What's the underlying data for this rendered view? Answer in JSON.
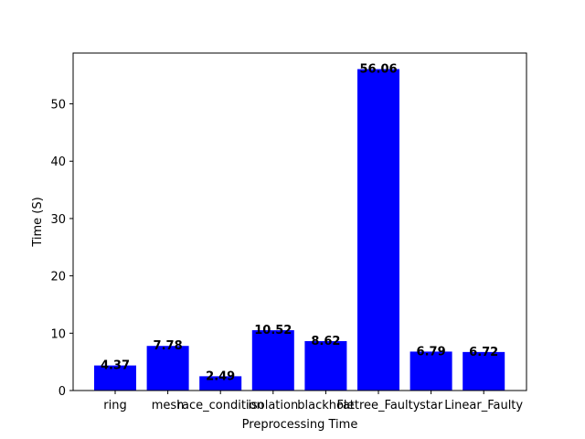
{
  "chart_data": {
    "type": "bar",
    "title": "",
    "xlabel": "Preprocessing Time",
    "ylabel": "Time (S)",
    "categories": [
      "ring",
      "mesh",
      "race_condition",
      "isolation",
      "blackhole",
      "Fattree_Faulty",
      "star",
      "Linear_Faulty"
    ],
    "values": [
      4.37,
      7.78,
      2.49,
      10.52,
      8.62,
      56.06,
      6.79,
      6.72
    ],
    "value_labels": [
      "4.37",
      "7.78",
      "2.49",
      "10.52",
      "8.62",
      "56.06",
      "6.79",
      "6.72"
    ],
    "ylim": [
      0,
      58.863
    ],
    "yticks": [
      0,
      10,
      20,
      30,
      40,
      50
    ],
    "bar_color": "#0000ff",
    "grid": false,
    "legend": "none"
  }
}
